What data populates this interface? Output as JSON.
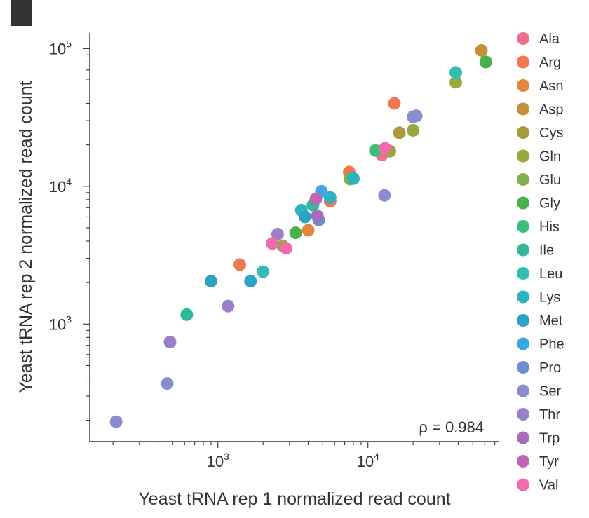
{
  "chart_data": {
    "type": "scatter",
    "title": "",
    "xlabel": "Yeast tRNA rep 1 normalized read count",
    "ylabel": "Yeast tRNA rep 2 normalized read count",
    "xscale": "log",
    "yscale": "log",
    "xlim": [
      140,
      75000
    ],
    "ylim": [
      140,
      130000
    ],
    "x_ticks": [
      {
        "value": 1000,
        "base": "10",
        "exp": "3"
      },
      {
        "value": 10000,
        "base": "10",
        "exp": "4"
      }
    ],
    "y_ticks": [
      {
        "value": 1000,
        "base": "10",
        "exp": "3"
      },
      {
        "value": 10000,
        "base": "10",
        "exp": "4"
      },
      {
        "value": 100000,
        "base": "10",
        "exp": "5"
      }
    ],
    "annotation": "ρ = 0.984",
    "legend_position": "right",
    "series": [
      {
        "name": "Ala",
        "color": "#ef6f8a",
        "points": [
          [
            12400,
            16900
          ]
        ]
      },
      {
        "name": "Arg",
        "color": "#f07850",
        "points": [
          [
            1400,
            2700
          ],
          [
            7500,
            12700
          ],
          [
            15000,
            40000
          ],
          [
            5600,
            7800
          ]
        ]
      },
      {
        "name": "Asn",
        "color": "#e08840",
        "points": [
          [
            4000,
            4800
          ]
        ]
      },
      {
        "name": "Asp",
        "color": "#c4903a",
        "points": [
          [
            57000,
            97000
          ]
        ]
      },
      {
        "name": "Cys",
        "color": "#a99a3a",
        "points": [
          [
            16200,
            24500
          ]
        ]
      },
      {
        "name": "Gln",
        "color": "#9aa640",
        "points": [
          [
            38500,
            57000
          ],
          [
            20000,
            25500
          ],
          [
            14000,
            18000
          ],
          [
            2700,
            3700
          ]
        ]
      },
      {
        "name": "Glu",
        "color": "#7fb24a",
        "points": [
          [
            7600,
            11300
          ]
        ]
      },
      {
        "name": "Gly",
        "color": "#4bb04c",
        "points": [
          [
            61000,
            80000
          ],
          [
            3300,
            4600
          ]
        ]
      },
      {
        "name": "His",
        "color": "#3cbd7c",
        "points": [
          [
            11200,
            18200
          ]
        ]
      },
      {
        "name": "Ile",
        "color": "#2fb99a",
        "points": [
          [
            620,
            1170
          ],
          [
            4300,
            7300
          ]
        ]
      },
      {
        "name": "Leu",
        "color": "#33bdb0",
        "points": [
          [
            38500,
            67000
          ],
          [
            2000,
            2400
          ]
        ]
      },
      {
        "name": "Lys",
        "color": "#2cb3be",
        "points": [
          [
            3600,
            6700
          ],
          [
            5600,
            8300
          ],
          [
            8000,
            11400
          ]
        ]
      },
      {
        "name": "Met",
        "color": "#2aa3c4",
        "points": [
          [
            900,
            2050
          ],
          [
            1650,
            2050
          ],
          [
            3800,
            6000
          ]
        ]
      },
      {
        "name": "Phe",
        "color": "#3aa7e0",
        "points": [
          [
            4900,
            9200
          ]
        ]
      },
      {
        "name": "Pro",
        "color": "#6f8fd0",
        "points": [
          [
            4700,
            5700
          ]
        ]
      },
      {
        "name": "Ser",
        "color": "#8a8cd0",
        "points": [
          [
            20000,
            32000
          ],
          [
            21000,
            32500
          ],
          [
            12900,
            8600
          ],
          [
            460,
            370
          ],
          [
            210,
            195
          ]
        ]
      },
      {
        "name": "Thr",
        "color": "#9a80c8",
        "points": [
          [
            480,
            740
          ],
          [
            1170,
            1350
          ],
          [
            2500,
            4500
          ]
        ]
      },
      {
        "name": "Trp",
        "color": "#a56dbb",
        "points": [
          [
            4600,
            6100
          ]
        ]
      },
      {
        "name": "Tyr",
        "color": "#c064b4",
        "points": [
          [
            4500,
            8100
          ]
        ]
      },
      {
        "name": "Val",
        "color": "#f06aac",
        "points": [
          [
            2300,
            3850
          ],
          [
            2850,
            3550
          ],
          [
            13000,
            18900
          ]
        ]
      }
    ]
  }
}
